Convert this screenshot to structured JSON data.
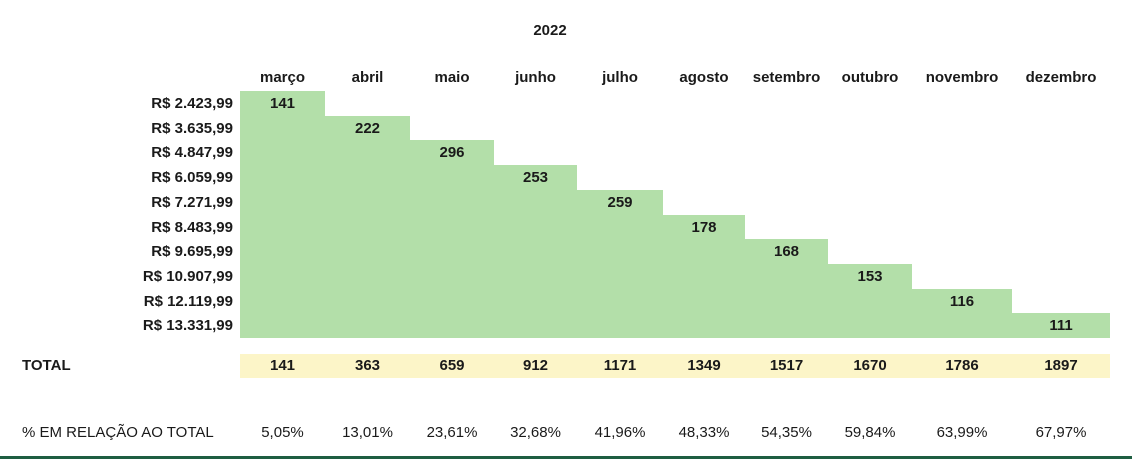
{
  "title": "2022",
  "columns": [
    "março",
    "abril",
    "maio",
    "junho",
    "julho",
    "agosto",
    "setembro",
    "outubro",
    "novembro",
    "dezembro"
  ],
  "rows": [
    {
      "label": "R$ 2.423,99",
      "value": "141"
    },
    {
      "label": "R$ 3.635,99",
      "value": "222"
    },
    {
      "label": "R$ 4.847,99",
      "value": "296"
    },
    {
      "label": "R$ 6.059,99",
      "value": "253"
    },
    {
      "label": "R$ 7.271,99",
      "value": "259"
    },
    {
      "label": "R$ 8.483,99",
      "value": "178"
    },
    {
      "label": "R$ 9.695,99",
      "value": "168"
    },
    {
      "label": "R$ 10.907,99",
      "value": "153"
    },
    {
      "label": "R$ 12.119,99",
      "value": "116"
    },
    {
      "label": "R$ 13.331,99",
      "value": "111"
    }
  ],
  "total": {
    "label": "TOTAL",
    "values": [
      "141",
      "363",
      "659",
      "912",
      "1171",
      "1349",
      "1517",
      "1670",
      "1786",
      "1897"
    ]
  },
  "percent": {
    "label": "% EM RELAÇÃO AO TOTAL",
    "values": [
      "5,05%",
      "13,01%",
      "23,61%",
      "32,68%",
      "41,96%",
      "48,33%",
      "54,35%",
      "59,84%",
      "63,99%",
      "67,97%"
    ]
  },
  "colors": {
    "step_fill": "#b3dfa9",
    "total_fill": "#fcf5c8",
    "bottom_rule": "#1e5e41",
    "text": "#1a1a1a"
  },
  "chart_data": {
    "type": "table",
    "title": "2022",
    "categories": [
      "março",
      "abril",
      "maio",
      "junho",
      "julho",
      "agosto",
      "setembro",
      "outubro",
      "novembro",
      "dezembro"
    ],
    "row_labels": [
      "R$ 2.423,99",
      "R$ 3.635,99",
      "R$ 4.847,99",
      "R$ 6.059,99",
      "R$ 7.271,99",
      "R$ 8.483,99",
      "R$ 9.695,99",
      "R$ 10.907,99",
      "R$ 12.119,99",
      "R$ 13.331,99"
    ],
    "monthly_values": [
      141,
      222,
      296,
      253,
      259,
      178,
      168,
      153,
      116,
      111
    ],
    "cumulative_totals": [
      141,
      363,
      659,
      912,
      1171,
      1349,
      1517,
      1670,
      1786,
      1897
    ],
    "percent_of_total": [
      "5,05%",
      "13,01%",
      "23,61%",
      "32,68%",
      "41,96%",
      "48,33%",
      "54,35%",
      "59,84%",
      "63,99%",
      "67,97%"
    ],
    "total_row_label": "TOTAL",
    "percent_row_label": "% EM RELAÇÃO AO TOTAL",
    "layout": "stepped cumulative staircase: row i green band spans columns 1..i"
  }
}
